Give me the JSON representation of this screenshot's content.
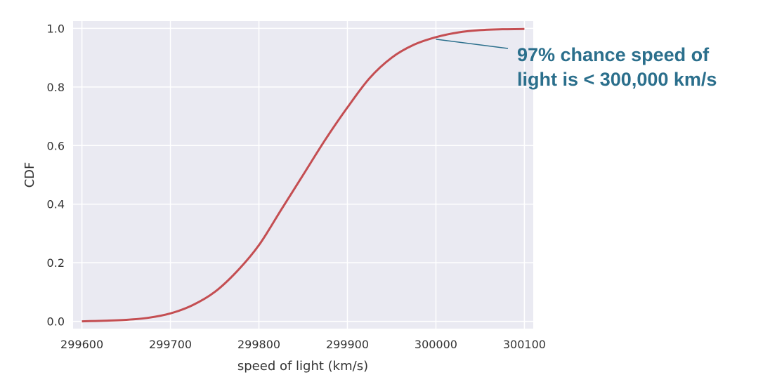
{
  "chart_data": {
    "type": "line",
    "title": "",
    "xlabel": "speed of light (km/s)",
    "ylabel": "CDF",
    "xlim": [
      299590,
      300110
    ],
    "ylim": [
      -0.025,
      1.025
    ],
    "x_ticks": [
      299600,
      299700,
      299800,
      299900,
      300000,
      300100
    ],
    "y_ticks": [
      0.0,
      0.2,
      0.4,
      0.6,
      0.8,
      1.0
    ],
    "grid": true,
    "line_color": "#c44e52",
    "background_color": "#eaeaf2",
    "annotation_color": "#2b6f8c",
    "series": [
      {
        "x": [
          299600,
          299625,
          299650,
          299675,
          299700,
          299725,
          299750,
          299775,
          299800,
          299825,
          299850,
          299875,
          299900,
          299925,
          299950,
          299975,
          300000,
          300025,
          300050,
          300075,
          300100
        ],
        "y": [
          0.0,
          0.002,
          0.005,
          0.012,
          0.027,
          0.055,
          0.1,
          0.17,
          0.26,
          0.38,
          0.5,
          0.62,
          0.73,
          0.83,
          0.9,
          0.944,
          0.97,
          0.986,
          0.994,
          0.997,
          0.998
        ]
      }
    ],
    "annotations": [
      {
        "text_lines": [
          "97% chance speed of",
          "light is < 300,000 km/s"
        ],
        "point": [
          300000,
          0.963
        ]
      }
    ]
  }
}
